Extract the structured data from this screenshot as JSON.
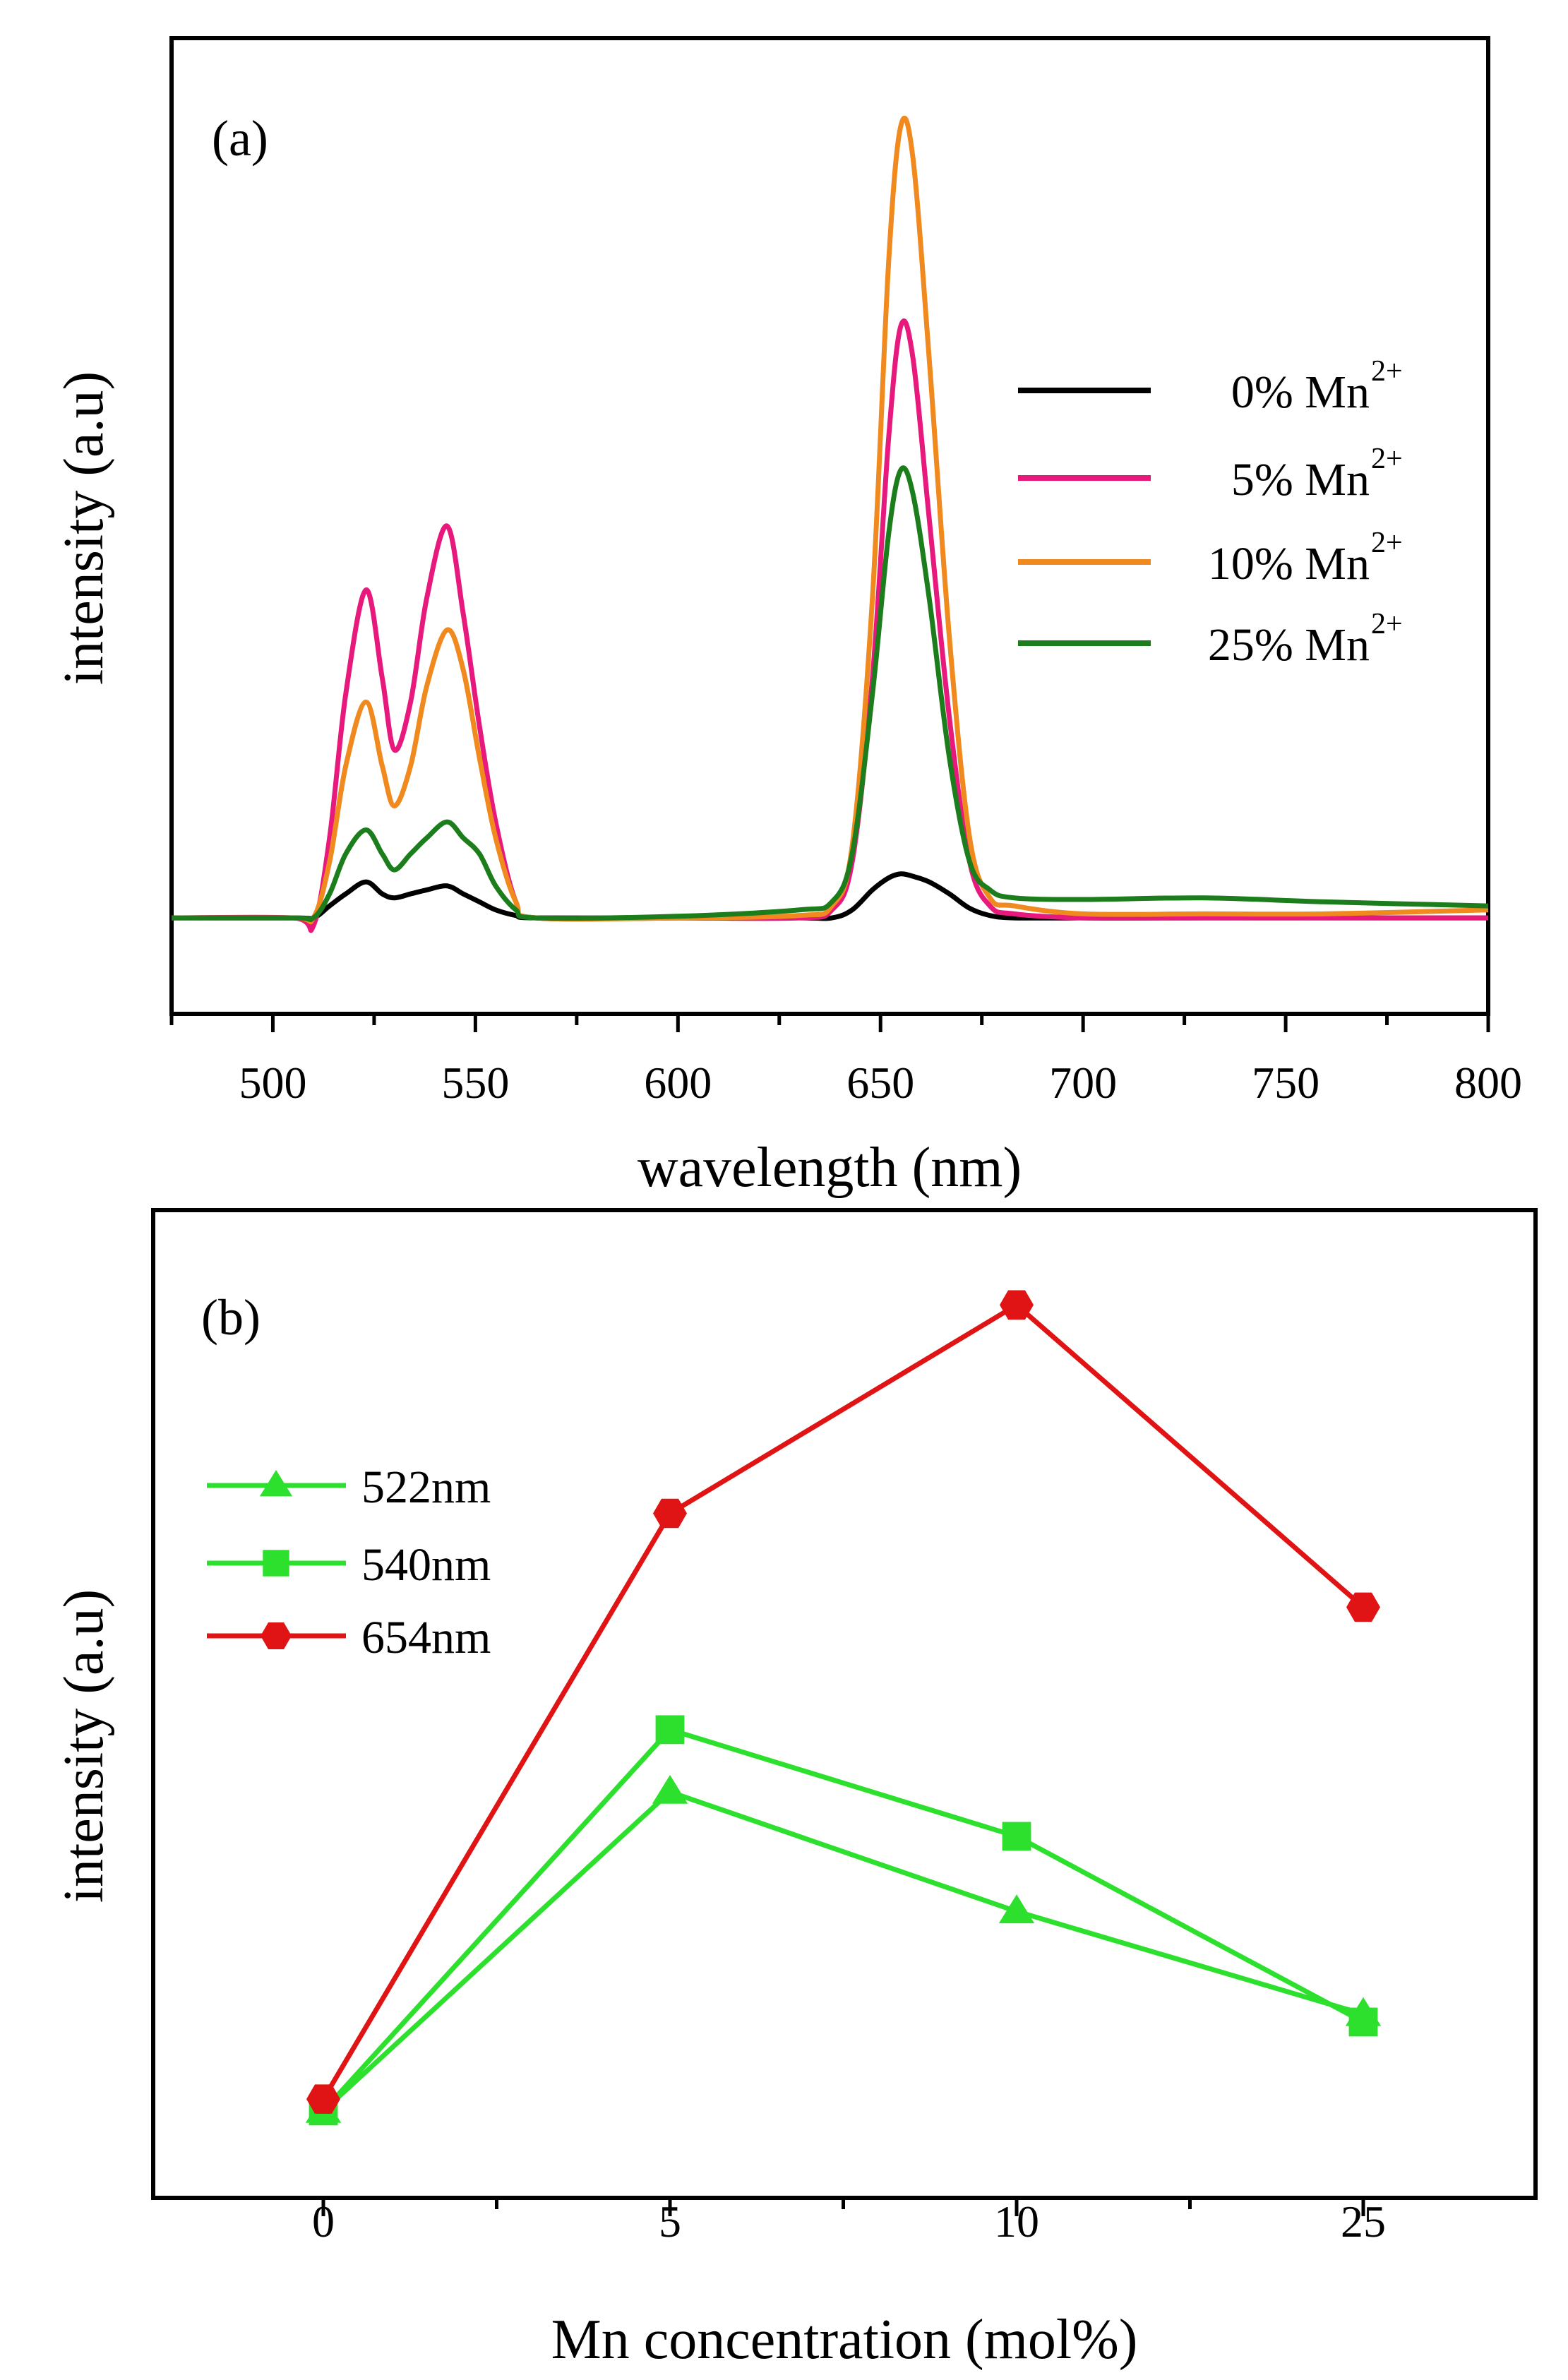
{
  "chart_data": [
    {
      "type": "line",
      "panel_label": "(a)",
      "xlabel": "wavelength (nm)",
      "ylabel": "intensity (a.u)",
      "xlim": [
        475,
        800
      ],
      "ylim": [
        -0.12,
        1.1
      ],
      "xticks": [
        500,
        550,
        600,
        650,
        700,
        750,
        800
      ],
      "xtick_labels": [
        "500",
        "550",
        "600",
        "650",
        "700",
        "750",
        "800"
      ],
      "legend_position": "right",
      "grid": false,
      "x": [
        475,
        505,
        510,
        514,
        518,
        523,
        527,
        530,
        534,
        538,
        543,
        547,
        551,
        555,
        560,
        565,
        600,
        630,
        638,
        643,
        648,
        652,
        655,
        658,
        662,
        667,
        672,
        677,
        683,
        700,
        730,
        760,
        800
      ],
      "series": [
        {
          "name": "0% Mn",
          "sup": "2+",
          "color": "#000000",
          "values": [
            0,
            0,
            0,
            0.015,
            0.03,
            0.045,
            0.03,
            0.025,
            0.03,
            0.035,
            0.04,
            0.03,
            0.02,
            0.01,
            0.003,
            0,
            0,
            0,
            0,
            0.01,
            0.035,
            0.05,
            0.055,
            0.052,
            0.045,
            0.03,
            0.012,
            0.003,
            0,
            0,
            0,
            0,
            0
          ]
        },
        {
          "name": "5% Mn",
          "sup": "2+",
          "color": "#e8197c",
          "values": [
            0,
            0,
            -0.01,
            0.1,
            0.28,
            0.41,
            0.3,
            0.21,
            0.27,
            0.4,
            0.49,
            0.38,
            0.24,
            0.12,
            0.02,
            0,
            0,
            0,
            0.01,
            0.07,
            0.3,
            0.6,
            0.74,
            0.7,
            0.5,
            0.25,
            0.07,
            0.015,
            0.005,
            0,
            0,
            0,
            0
          ]
        },
        {
          "name": "10% Mn",
          "sup": "2+",
          "color": "#f08a1e",
          "values": [
            0,
            0,
            0,
            0.07,
            0.19,
            0.27,
            0.19,
            0.14,
            0.19,
            0.29,
            0.36,
            0.31,
            0.2,
            0.1,
            0.02,
            0,
            0,
            0.003,
            0.015,
            0.09,
            0.4,
            0.82,
            0.99,
            0.95,
            0.7,
            0.35,
            0.1,
            0.025,
            0.015,
            0.005,
            0.005,
            0.005,
            0.01
          ]
        },
        {
          "name": "25% Mn",
          "sup": "2+",
          "color": "#1b7d1b",
          "values": [
            0,
            0,
            0,
            0.03,
            0.08,
            0.11,
            0.08,
            0.06,
            0.08,
            0.1,
            0.12,
            0.1,
            0.08,
            0.04,
            0.01,
            0,
            0.002,
            0.01,
            0.02,
            0.08,
            0.28,
            0.48,
            0.56,
            0.53,
            0.4,
            0.2,
            0.07,
            0.035,
            0.025,
            0.023,
            0.025,
            0.02,
            0.015
          ]
        }
      ]
    },
    {
      "type": "line",
      "panel_label": "(b)",
      "xlabel": "Mn concentration (mol%)",
      "ylabel": "intensity (a.u)",
      "categories": [
        "0",
        "5",
        "10",
        "25"
      ],
      "ylim": [
        0,
        1
      ],
      "legend_position": "top-left",
      "grid": false,
      "series": [
        {
          "name": "522nm",
          "marker": "triangle",
          "color": "#2ee02e",
          "values": [
            0.088,
            0.411,
            0.29,
            0.186
          ]
        },
        {
          "name": "540nm",
          "marker": "square",
          "color": "#2ee02e",
          "values": [
            0.088,
            0.474,
            0.366,
            0.178
          ]
        },
        {
          "name": "654nm",
          "marker": "hexagon",
          "color": "#e01414",
          "values": [
            0.1,
            0.693,
            0.904,
            0.598
          ]
        }
      ]
    }
  ]
}
